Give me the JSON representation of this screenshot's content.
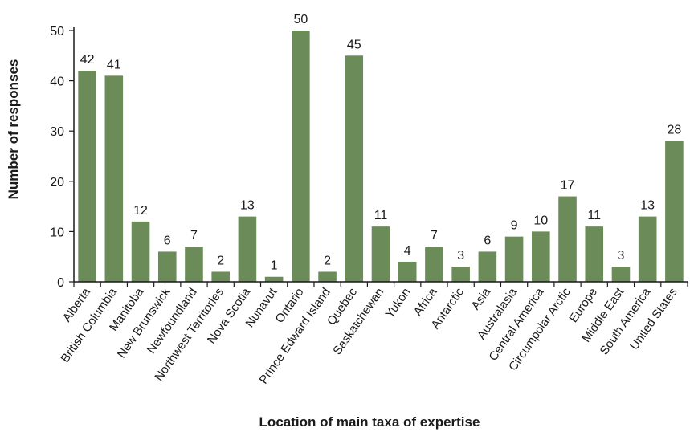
{
  "chart_data": {
    "type": "bar",
    "title": "",
    "xlabel": "Location of main taxa of expertise",
    "ylabel": "Number of responses",
    "ylim": [
      0,
      50
    ],
    "yticks": [
      0,
      10,
      20,
      30,
      40,
      50
    ],
    "grid": false,
    "bar_color": "#6b8c58",
    "categories": [
      "Alberta",
      "British Columbia",
      "Manitoba",
      "New Brunswick",
      "Newfoundland",
      "Northwest Territories",
      "Nova Scotia",
      "Nunavut",
      "Ontario",
      "Prince Edward Island",
      "Quebec",
      "Saskatchewan",
      "Yukon",
      "Africa",
      "Antarctic",
      "Asia",
      "Australasia",
      "Central America",
      "Circumpolar Arctic",
      "Europe",
      "Middle East",
      "South America",
      "United States"
    ],
    "values": [
      42,
      41,
      12,
      6,
      7,
      2,
      13,
      1,
      50,
      2,
      45,
      11,
      4,
      7,
      3,
      6,
      9,
      10,
      17,
      11,
      3,
      13,
      28
    ]
  }
}
